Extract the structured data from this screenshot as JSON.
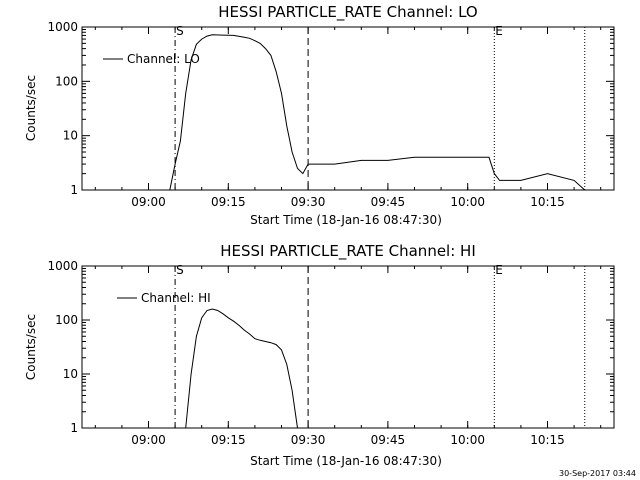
{
  "chart_data": [
    {
      "type": "line",
      "title": "HESSI PARTICLE_RATE Channel: LO",
      "xlabel": "Start Time (18-Jan-16 08:47:30)",
      "ylabel": "Counts/sec",
      "yscale": "log",
      "ylim": [
        1,
        1000
      ],
      "xlim": [
        "08:47:30",
        "10:27:30"
      ],
      "x_ticks": [
        "09:00",
        "09:15",
        "09:30",
        "09:45",
        "10:00",
        "10:15"
      ],
      "y_ticks": [
        "1",
        "10",
        "100",
        "1000"
      ],
      "legend": {
        "position": "top-left",
        "entries": [
          "Channel: LO"
        ]
      },
      "series": [
        {
          "name": "Channel: LO",
          "x": [
            "09:04:00",
            "09:05:00",
            "09:06:00",
            "09:07:00",
            "09:08:00",
            "09:09:00",
            "09:10:00",
            "09:11:00",
            "09:12:00",
            "09:14:00",
            "09:16:00",
            "09:18:00",
            "09:19:00",
            "09:20:00",
            "09:21:00",
            "09:22:00",
            "09:23:00",
            "09:24:00",
            "09:25:00",
            "09:26:00",
            "09:27:00",
            "09:28:00",
            "09:29:00",
            "09:30:00",
            "09:32:00",
            "09:35:00",
            "09:40:00",
            "09:45:00",
            "09:50:00",
            "09:55:00",
            "10:00:00",
            "10:04:00",
            "10:05:00",
            "10:06:00",
            "10:10:00",
            "10:15:00",
            "10:20:00",
            "10:22:00"
          ],
          "y": [
            1,
            3,
            8,
            60,
            250,
            480,
            600,
            680,
            720,
            710,
            700,
            650,
            620,
            560,
            500,
            400,
            300,
            150,
            60,
            15,
            5,
            2.5,
            2,
            3,
            3,
            3,
            3.5,
            3.5,
            4,
            4,
            4,
            4,
            2,
            1.5,
            1.5,
            2,
            1.5,
            1
          ]
        }
      ],
      "markers": [
        {
          "label": "S",
          "time": "09:05:00",
          "style": "dash-dot"
        },
        {
          "label": "",
          "time": "09:30:00",
          "style": "dashed"
        },
        {
          "label": "E",
          "time": "10:05:00",
          "style": "dotted"
        },
        {
          "label": "",
          "time": "10:22:00",
          "style": "dotted"
        }
      ]
    },
    {
      "type": "line",
      "title": "HESSI PARTICLE_RATE Channel: HI",
      "xlabel": "Start Time (18-Jan-16 08:47:30)",
      "ylabel": "Counts/sec",
      "yscale": "log",
      "ylim": [
        1,
        1000
      ],
      "xlim": [
        "08:47:30",
        "10:27:30"
      ],
      "x_ticks": [
        "09:00",
        "09:15",
        "09:30",
        "09:45",
        "10:00",
        "10:15"
      ],
      "y_ticks": [
        "1",
        "10",
        "100",
        "1000"
      ],
      "legend": {
        "position": "top-left",
        "entries": [
          "Channel: HI"
        ]
      },
      "series": [
        {
          "name": "Channel: HI",
          "x": [
            "09:07:00",
            "09:08:00",
            "09:09:00",
            "09:10:00",
            "09:11:00",
            "09:12:00",
            "09:13:00",
            "09:14:00",
            "09:15:00",
            "09:16:00",
            "09:17:00",
            "09:18:00",
            "09:19:00",
            "09:20:00",
            "09:21:00",
            "09:22:00",
            "09:23:00",
            "09:24:00",
            "09:25:00",
            "09:26:00",
            "09:27:00",
            "09:28:00"
          ],
          "y": [
            1,
            10,
            50,
            110,
            150,
            160,
            150,
            130,
            110,
            95,
            80,
            65,
            55,
            45,
            42,
            40,
            38,
            35,
            28,
            15,
            5,
            1
          ]
        }
      ],
      "markers": [
        {
          "label": "S",
          "time": "09:05:00",
          "style": "dash-dot"
        },
        {
          "label": "",
          "time": "09:30:00",
          "style": "dashed"
        },
        {
          "label": "E",
          "time": "10:05:00",
          "style": "dotted"
        },
        {
          "label": "",
          "time": "10:22:00",
          "style": "dotted"
        }
      ]
    }
  ],
  "footer": {
    "timestamp": "30-Sep-2017 03:44"
  }
}
